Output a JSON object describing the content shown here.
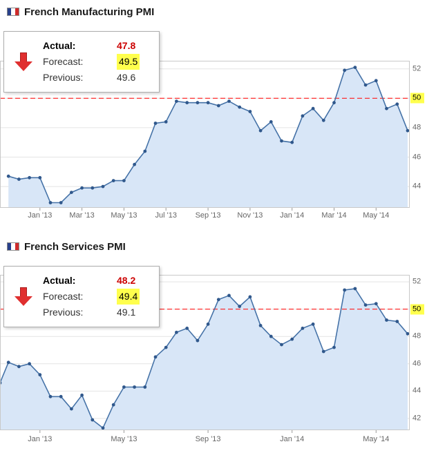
{
  "colors": {
    "line": "#4572a7",
    "marker": "#30588c",
    "area_fill": "#d8e6f7",
    "grid": "#e4e4e4",
    "plot_border": "#c8c8c8",
    "reference_line": "#ff1a1a",
    "axis_text": "#666666",
    "actual_value": "#cc0000",
    "highlight_bg": "#ffff4d",
    "arrow_red": "#e02f2f"
  },
  "charts": [
    {
      "title": "French Manufacturing PMI",
      "flag_icon": "france-flag",
      "info_box": {
        "direction_icon": "down-arrow",
        "actual_label": "Actual:",
        "actual": "47.8",
        "forecast_label": "Forecast:",
        "forecast": "49.5",
        "previous_label": "Previous:",
        "previous": "49.6"
      }
    },
    {
      "title": "French Services PMI",
      "flag_icon": "france-flag",
      "info_box": {
        "direction_icon": "down-arrow",
        "actual_label": "Actual:",
        "actual": "48.2",
        "forecast_label": "Forecast:",
        "forecast": "49.4",
        "previous_label": "Previous:",
        "previous": "49.1"
      }
    }
  ],
  "chart_data": [
    {
      "type": "area",
      "title": "French Manufacturing PMI",
      "x_unit": "months since Nov 2012 (two releases per month: flash then final)",
      "xlim": [
        0.1,
        19.6
      ],
      "ylim": [
        42.55,
        52.55
      ],
      "y_ticks": [
        44,
        46,
        48,
        50,
        52
      ],
      "x_ticks": [
        {
          "pos": 2,
          "label": "Jan '13"
        },
        {
          "pos": 4,
          "label": "Mar '13"
        },
        {
          "pos": 6,
          "label": "May '13"
        },
        {
          "pos": 8,
          "label": "Jul '13"
        },
        {
          "pos": 10,
          "label": "Sep '13"
        },
        {
          "pos": 12,
          "label": "Nov '13"
        },
        {
          "pos": 14,
          "label": "Jan '14"
        },
        {
          "pos": 16,
          "label": "Mar '14"
        },
        {
          "pos": 18,
          "label": "May '14"
        }
      ],
      "reference_line": {
        "value": 50,
        "label": "50",
        "style": "red-dashed"
      },
      "grid": true,
      "legend": false,
      "x": [
        0.5,
        1,
        1.5,
        2,
        2.5,
        3,
        3.5,
        4,
        4.5,
        5,
        5.5,
        6,
        6.5,
        7,
        7.5,
        8,
        8.5,
        9,
        9.5,
        10,
        10.5,
        11,
        11.5,
        12,
        12.5,
        13,
        13.5,
        14,
        14.5,
        15,
        15.5,
        16,
        16.5,
        17,
        17.5,
        18,
        18.5,
        19,
        19.5
      ],
      "values": [
        44.7,
        44.5,
        44.6,
        44.6,
        42.9,
        42.9,
        43.6,
        43.9,
        43.9,
        44.0,
        44.4,
        44.4,
        45.5,
        46.4,
        48.3,
        48.4,
        49.8,
        49.7,
        49.7,
        49.7,
        49.5,
        49.8,
        49.4,
        49.1,
        47.8,
        48.4,
        47.1,
        47.0,
        48.8,
        49.3,
        48.5,
        49.7,
        51.9,
        52.1,
        50.9,
        51.2,
        49.3,
        49.6,
        47.8
      ]
    },
    {
      "type": "area",
      "title": "French Services PMI",
      "x_unit": "months since Nov 2012 (two releases per month: flash then final)",
      "xlim": [
        0.1,
        19.6
      ],
      "ylim": [
        41.14,
        52.51
      ],
      "y_ticks": [
        42,
        44,
        46,
        48,
        50,
        52
      ],
      "x_ticks": [
        {
          "pos": 2,
          "label": "Jan '13"
        },
        {
          "pos": 6,
          "label": "May '13"
        },
        {
          "pos": 10,
          "label": "Sep '13"
        },
        {
          "pos": 14,
          "label": "Jan '14"
        },
        {
          "pos": 18,
          "label": "May '14"
        }
      ],
      "reference_line": {
        "value": 50,
        "label": "50",
        "style": "red-dashed"
      },
      "grid": true,
      "legend": false,
      "x": [
        0.1,
        0.5,
        1,
        1.5,
        2,
        2.5,
        3,
        3.5,
        4,
        4.5,
        5,
        5.5,
        6,
        6.5,
        7,
        7.5,
        8,
        8.5,
        9,
        9.5,
        10,
        10.5,
        11,
        11.5,
        12,
        12.5,
        13,
        13.5,
        14,
        14.5,
        15,
        15.5,
        16,
        16.5,
        17,
        17.5,
        18,
        18.5,
        19,
        19.5
      ],
      "values": [
        44.6,
        46.1,
        45.8,
        46.0,
        45.2,
        43.6,
        43.6,
        42.7,
        43.7,
        41.9,
        41.3,
        43.0,
        44.3,
        44.3,
        44.3,
        46.5,
        47.2,
        48.3,
        48.6,
        47.7,
        48.9,
        50.7,
        51.0,
        50.2,
        50.9,
        48.8,
        48.0,
        47.4,
        47.8,
        48.6,
        48.9,
        46.9,
        47.2,
        51.4,
        51.5,
        50.3,
        50.4,
        49.2,
        49.1,
        48.2
      ]
    }
  ]
}
